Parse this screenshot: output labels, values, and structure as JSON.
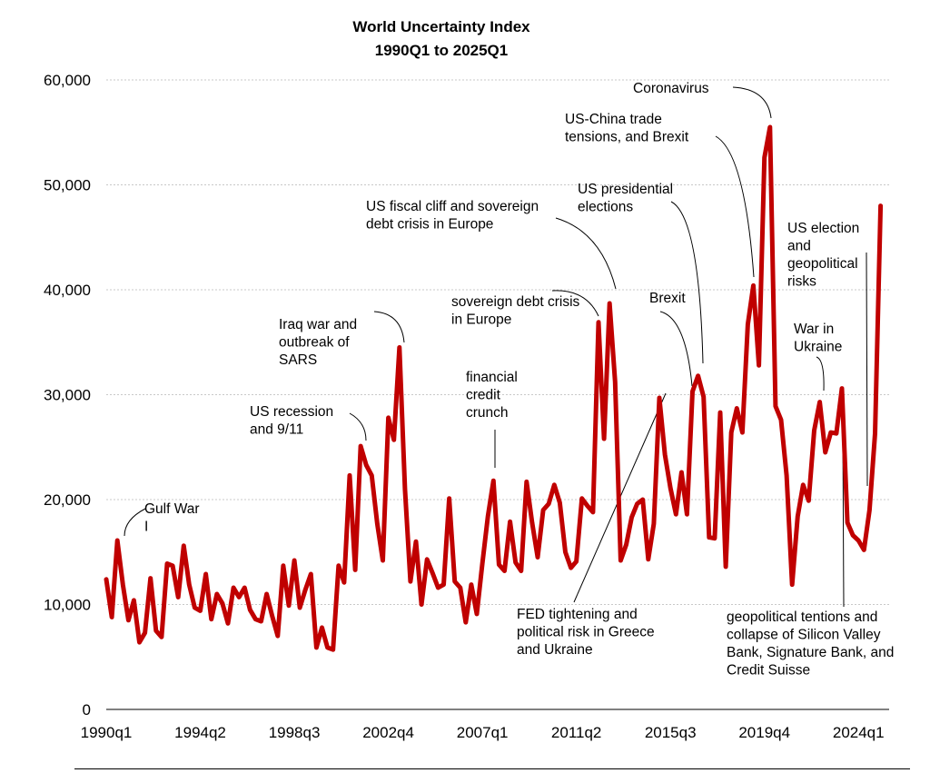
{
  "chart_data": {
    "type": "line",
    "title": [
      "World Uncertainty Index",
      "1990Q1 to 2025Q1"
    ],
    "xlabel": "",
    "ylabel": "",
    "ylim": [
      0,
      60000
    ],
    "yticks": [
      0,
      10000,
      20000,
      30000,
      40000,
      50000,
      60000
    ],
    "ytick_labels": [
      "0",
      "10,000",
      "20,000",
      "30,000",
      "40,000",
      "50,000",
      "60,000"
    ],
    "xticks": [
      {
        "index": 0,
        "label": "1990q1"
      },
      {
        "index": 17,
        "label": "1994q2"
      },
      {
        "index": 34,
        "label": "1998q3"
      },
      {
        "index": 51,
        "label": "2002q4"
      },
      {
        "index": 68,
        "label": "2007q1"
      },
      {
        "index": 85,
        "label": "2011q2"
      },
      {
        "index": 102,
        "label": "2015q3"
      },
      {
        "index": 119,
        "label": "2019q4"
      },
      {
        "index": 136,
        "label": "2024q1"
      }
    ],
    "grid": "horizontal dashed",
    "series": [
      {
        "name": "World Uncertainty Index",
        "color": "#c00000",
        "x_start": "1990q1",
        "frequency": "quarterly",
        "values": [
          12400,
          8800,
          16100,
          11900,
          8500,
          10400,
          6400,
          7300,
          12500,
          7500,
          6900,
          13900,
          13700,
          10700,
          15600,
          11900,
          9700,
          9400,
          12900,
          8600,
          11000,
          10100,
          8200,
          11600,
          10700,
          11600,
          9500,
          8600,
          8400,
          11000,
          8900,
          7000,
          13700,
          9900,
          14200,
          9700,
          11400,
          12900,
          5900,
          7800,
          5900,
          5700,
          13700,
          12100,
          22300,
          13300,
          25100,
          23300,
          22300,
          17700,
          14200,
          27800,
          25700,
          34500,
          21000,
          12200,
          16000,
          10000,
          14300,
          13000,
          11600,
          11900,
          20100,
          12200,
          11600,
          8300,
          11900,
          9100,
          13900,
          18400,
          21800,
          13800,
          13200,
          17900,
          14000,
          13200,
          21700,
          17800,
          14500,
          19000,
          19600,
          21400,
          19700,
          15000,
          13500,
          14100,
          20100,
          19400,
          18800,
          36900,
          25800,
          38700,
          31200,
          14200,
          15700,
          18300,
          19600,
          20000,
          14300,
          17700,
          29700,
          24300,
          21100,
          18600,
          22600,
          18600,
          30300,
          31800,
          29800,
          16400,
          16300,
          28300,
          13600,
          26400,
          28700,
          26400,
          36700,
          40400,
          32800,
          52600,
          55500,
          28900,
          27600,
          22300,
          11900,
          18400,
          21400,
          19900,
          26600,
          29300,
          24500,
          26400,
          26300,
          30600,
          17800,
          16600,
          16100,
          15200,
          19000,
          26300,
          48000
        ]
      }
    ],
    "annotations": [
      {
        "lines": [
          "Gulf War",
          "I"
        ],
        "event": "Gulf War I"
      },
      {
        "lines": [
          "US recession",
          "and 9/11"
        ],
        "event": "US recession and 9/11"
      },
      {
        "lines": [
          "Iraq war and",
          "outbreak of",
          "SARS"
        ],
        "event": "Iraq war and outbreak of SARS"
      },
      {
        "lines": [
          "financial",
          "credit",
          "crunch"
        ],
        "event": "financial credit crunch"
      },
      {
        "lines": [
          "sovereign debt crisis",
          "in Europe"
        ],
        "event": "sovereign debt crisis in Europe"
      },
      {
        "lines": [
          "US fiscal cliff and sovereign",
          "debt crisis in Europe"
        ],
        "event": "US fiscal cliff"
      },
      {
        "lines": [
          "FED tightening and",
          "political risk in Greece",
          "and Ukraine"
        ],
        "event": "FED tightening"
      },
      {
        "lines": [
          "Brexit"
        ],
        "event": "Brexit"
      },
      {
        "lines": [
          "US presidential",
          "elections"
        ],
        "event": "US presidential elections"
      },
      {
        "lines": [
          "US-China trade",
          "tensions, and Brexit"
        ],
        "event": "US-China trade tensions"
      },
      {
        "lines": [
          "Coronavirus"
        ],
        "event": "Coronavirus"
      },
      {
        "lines": [
          "US election",
          "and",
          "geopolitical",
          "risks"
        ],
        "event": "US election and geopolitical risks"
      },
      {
        "lines": [
          "War in",
          "Ukraine"
        ],
        "event": "War in Ukraine"
      },
      {
        "lines": [
          "geopolitical tentions and",
          "collapse of Silicon Valley",
          "Bank, Signature Bank, and",
          "Credit Suisse"
        ],
        "event": "SVB collapse"
      }
    ]
  }
}
